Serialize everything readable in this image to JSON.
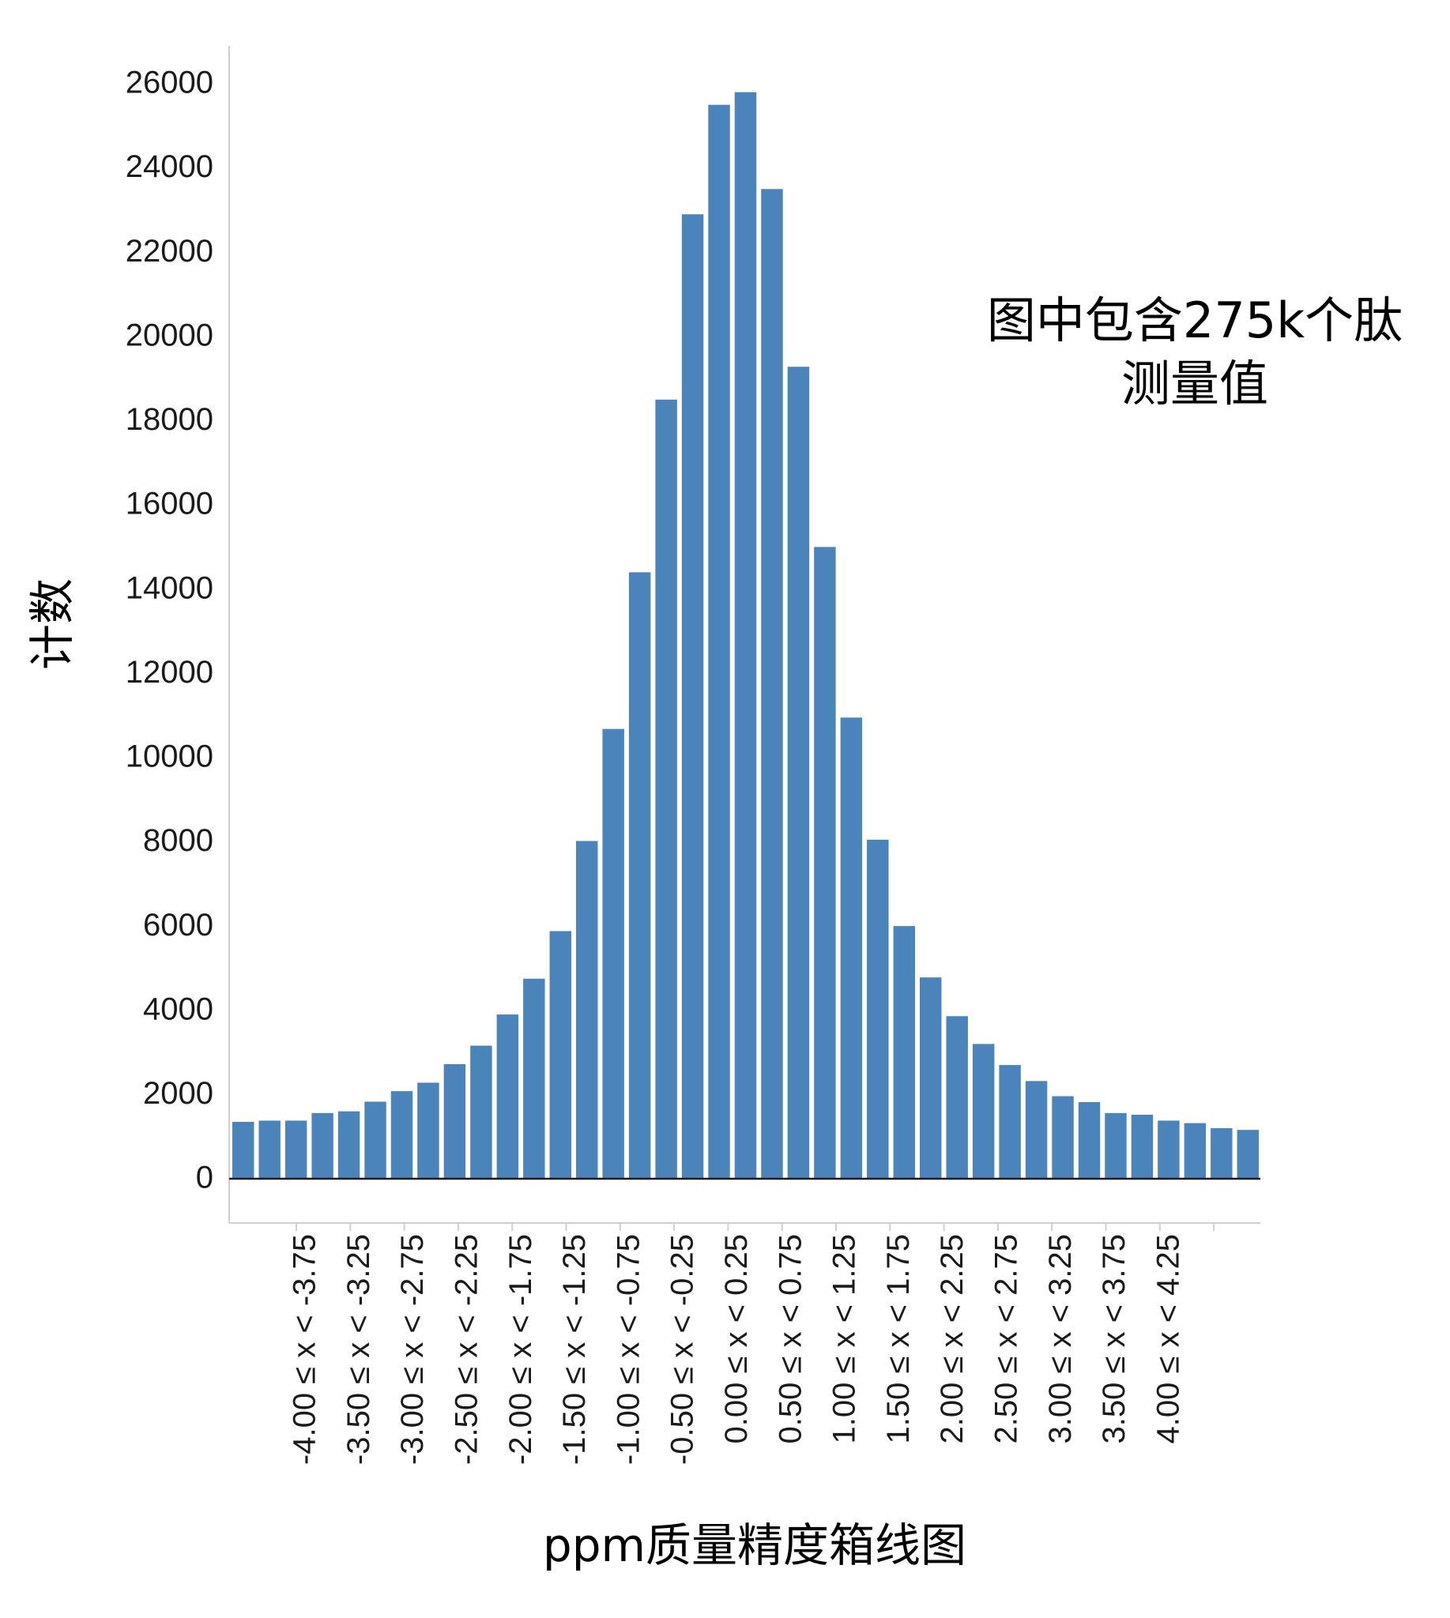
{
  "chart_data": {
    "type": "bar",
    "ylabel": "计数",
    "xlabel": "ppm质量精度箱线图",
    "annotation": [
      "图中包含275k个肽",
      "测量值"
    ],
    "ylim": [
      -1100,
      26500
    ],
    "yticks": [
      0,
      2000,
      4000,
      6000,
      8000,
      10000,
      12000,
      14000,
      16000,
      18000,
      20000,
      22000,
      24000,
      26000
    ],
    "bar_color": "#4a84bb",
    "category_labels": [
      "-4.00 ≤ x < -3.75",
      "-3.50 ≤ x < -3.25",
      "-3.00 ≤ x < -2.75",
      "-2.50 ≤ x < -2.25",
      "-2.00 ≤ x < -1.75",
      "-1.50 ≤ x < -1.25",
      "-1.00 ≤ x < -0.75",
      "-0.50 ≤ x < -0.25",
      "0.00 ≤ x < 0.25",
      "0.50 ≤ x < 0.75",
      "1.00 ≤ x < 1.25",
      "1.50 ≤ x < 1.75",
      "2.00 ≤ x < 2.25",
      "2.50 ≤ x < 2.75",
      "3.00 ≤ x < 3.25",
      "3.50 ≤ x < 3.75",
      "4.00 ≤ x < 4.25"
    ],
    "values": [
      1350,
      1380,
      1380,
      1560,
      1600,
      1830,
      2080,
      2280,
      2720,
      3160,
      3900,
      4750,
      5880,
      8020,
      10680,
      14400,
      18500,
      22900,
      25500,
      25800,
      23500,
      19280,
      15000,
      10950,
      8050,
      6000,
      4780,
      3860,
      3200,
      2700,
      2320,
      1960,
      1820,
      1560,
      1520,
      1380,
      1320,
      1200,
      1160
    ]
  }
}
